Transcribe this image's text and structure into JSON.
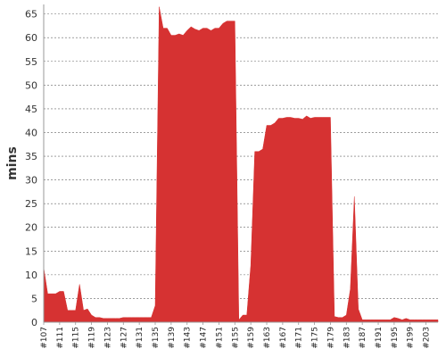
{
  "chart_data": {
    "type": "area",
    "title": "",
    "xlabel": "",
    "ylabel": "mins",
    "ylim": [
      0,
      67
    ],
    "yticks": [
      0,
      5,
      10,
      15,
      20,
      25,
      30,
      35,
      40,
      45,
      50,
      55,
      60,
      65
    ],
    "grid": true,
    "legend": "none",
    "x_tick_labels": [
      "#107",
      "#111",
      "#115",
      "#119",
      "#123",
      "#127",
      "#131",
      "#135",
      "#139",
      "#143",
      "#147",
      "#151",
      "#155",
      "#159",
      "#163",
      "#167",
      "#171",
      "#175",
      "#179",
      "#183",
      "#187",
      "#191",
      "#195",
      "#199",
      "#203"
    ],
    "series": [
      {
        "color": "#d63232",
        "x": [
          107,
          108,
          109,
          110,
          111,
          112,
          113,
          114,
          115,
          116,
          117,
          118,
          119,
          120,
          121,
          122,
          123,
          124,
          125,
          126,
          127,
          128,
          129,
          130,
          131,
          132,
          133,
          134,
          135,
          136,
          137,
          138,
          139,
          140,
          141,
          142,
          143,
          144,
          145,
          146,
          147,
          148,
          149,
          150,
          151,
          152,
          153,
          154,
          155,
          156,
          157,
          158,
          159,
          160,
          161,
          162,
          163,
          164,
          165,
          166,
          167,
          168,
          169,
          170,
          171,
          172,
          173,
          174,
          175,
          176,
          177,
          178,
          179,
          180,
          181,
          182,
          183,
          184,
          185,
          186,
          187,
          188,
          189,
          190,
          191,
          192,
          193,
          194,
          195,
          196,
          197,
          198,
          199,
          200,
          201,
          202,
          203,
          204,
          205,
          206
        ],
        "values": [
          11.5,
          6,
          6,
          6,
          6.5,
          6.5,
          2.5,
          2.5,
          2.5,
          8,
          2.5,
          2.8,
          1.5,
          1,
          1,
          0.8,
          0.8,
          0.8,
          0.8,
          0.8,
          1,
          1,
          1,
          1,
          1,
          1,
          1,
          1,
          3.5,
          66.5,
          62,
          62,
          60.5,
          60.5,
          60.8,
          60.5,
          61.5,
          62.3,
          61.8,
          61.5,
          62,
          62,
          61.5,
          62,
          62,
          63,
          63.5,
          63.5,
          63.5,
          0.5,
          1.5,
          1.5,
          12,
          36,
          36,
          36.5,
          41.5,
          41.5,
          42,
          43,
          43,
          43.2,
          43.2,
          43,
          43,
          42.8,
          43.5,
          43,
          43.2,
          43.2,
          43.2,
          43.2,
          43.2,
          1.2,
          1,
          1,
          1.5,
          7,
          26.5,
          2.8,
          0.5,
          0.5,
          0.5,
          0.5,
          0.5,
          0.5,
          0.5,
          0.5,
          1,
          0.8,
          0.5,
          0.8,
          0.5,
          0.5,
          0.5,
          0.5,
          0.5,
          0.5,
          0.5,
          0.5
        ]
      }
    ]
  }
}
